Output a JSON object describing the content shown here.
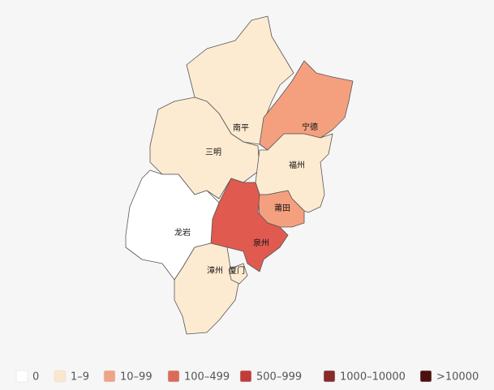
{
  "map": {
    "regions": [
      {
        "name": "南平",
        "color": "#fdebd1"
      },
      {
        "name": "三明",
        "color": "#fdebd1"
      },
      {
        "name": "宁德",
        "color": "#f4a07f"
      },
      {
        "name": "福州",
        "color": "#fdebd1"
      },
      {
        "name": "莆田",
        "color": "#f4a07f"
      },
      {
        "name": "泉州",
        "color": "#e05a50"
      },
      {
        "name": "龙岩",
        "color": "#ffffff"
      },
      {
        "name": "漳州",
        "color": "#fdebd1"
      },
      {
        "name": "厦门",
        "color": "#fdebd1"
      }
    ],
    "legend": [
      {
        "label": "0",
        "color": "#ffffff"
      },
      {
        "label": "1–9",
        "color": "#fbe7cc"
      },
      {
        "label": "10–99",
        "color": "#eea585"
      },
      {
        "label": "100–499",
        "color": "#dc6a59"
      },
      {
        "label": "500–999",
        "color": "#c23b3b"
      },
      {
        "label": "1000–10000",
        "color": "#862a2a"
      },
      {
        "label": ">10000",
        "color": "#4d1010"
      }
    ]
  }
}
